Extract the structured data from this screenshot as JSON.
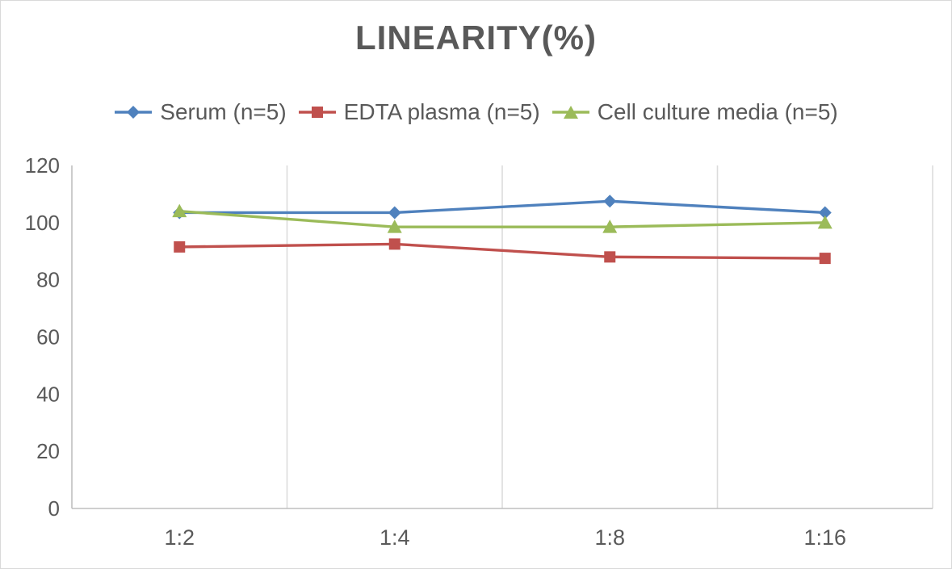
{
  "chart_data": {
    "type": "line",
    "title": "LINEARITY(%)",
    "categories": [
      "1:2",
      "1:4",
      "1:8",
      "1:16"
    ],
    "series": [
      {
        "name": "Serum (n=5)",
        "marker": "diamond",
        "color": "#4F81BD",
        "values": [
          103.5,
          103.5,
          107.5,
          103.5
        ]
      },
      {
        "name": "EDTA plasma (n=5)",
        "marker": "square",
        "color": "#C0504D",
        "values": [
          91.5,
          92.5,
          88.0,
          87.5
        ]
      },
      {
        "name": "Cell culture media (n=5)",
        "marker": "triangle",
        "color": "#9BBB59",
        "values": [
          104.0,
          98.5,
          98.5,
          100.0
        ]
      }
    ],
    "xlabel": "",
    "ylabel": "",
    "ylim": [
      0,
      120
    ],
    "yticks": [
      0,
      20,
      40,
      60,
      80,
      100,
      120
    ],
    "grid": "vertical-only",
    "legend_position": "top",
    "colors": {
      "text": "#595959",
      "axis_line": "#BFBFBF",
      "gridline": "#DCDCDC",
      "background": "#FFFFFF",
      "border": "#D9D9D9"
    }
  }
}
